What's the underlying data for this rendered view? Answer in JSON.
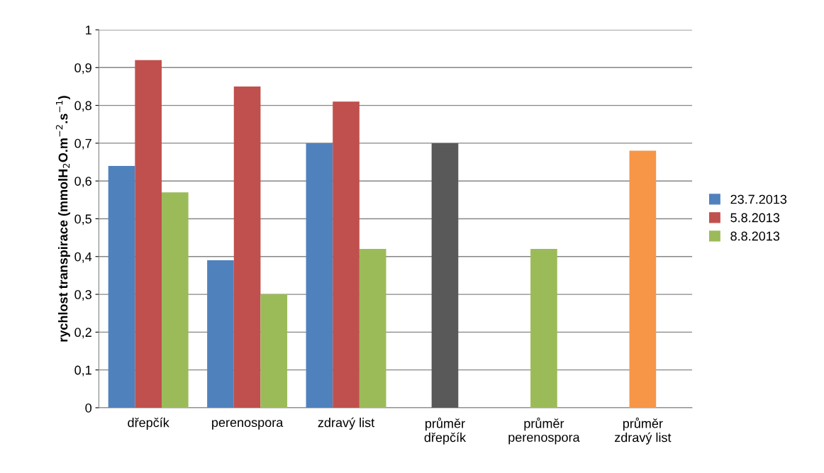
{
  "chart_data": {
    "type": "bar",
    "ylabel": "rychlost transpirace (mmolH$_{2}$O.m$^{−2}$.s$^{−1}$)",
    "categories": [
      "dřepčík",
      "perenospora",
      "zdravý list",
      "průměr\ndřepčík",
      "průměr\nperenospora",
      "průměr\nzdravý list"
    ],
    "series": [
      {
        "name": "23.7.2013",
        "color": "#4f81bd",
        "values": [
          0.64,
          0.39,
          0.7,
          null,
          null,
          null
        ]
      },
      {
        "name": "5.8.2013",
        "color": "#c0504d",
        "values": [
          0.92,
          0.85,
          0.81,
          0.7,
          0.42,
          0.68
        ],
        "colors": [
          "#c0504d",
          "#c0504d",
          "#c0504d",
          "#595959",
          "#9bbb59",
          "#f79646"
        ]
      },
      {
        "name": "8.8.2013",
        "color": "#9bbb59",
        "values": [
          0.57,
          0.3,
          0.42,
          null,
          null,
          null
        ]
      }
    ],
    "ylim": [
      0,
      1
    ],
    "yticks": [
      0,
      {
        "value": 0.1,
        "label": "0,1"
      },
      {
        "value": 0.2,
        "label": "0,2"
      },
      {
        "value": 0.3,
        "label": "0,3"
      },
      {
        "value": 0.4,
        "label": "0,4"
      },
      {
        "value": 0.5,
        "label": "0,5"
      },
      {
        "value": 0.6,
        "label": "0,6"
      },
      {
        "value": 0.7,
        "label": "0,7"
      },
      {
        "value": 0.8,
        "label": "0,8"
      },
      {
        "value": 0.9,
        "label": "0,9"
      },
      1
    ],
    "grid": "y",
    "legend": "right"
  }
}
